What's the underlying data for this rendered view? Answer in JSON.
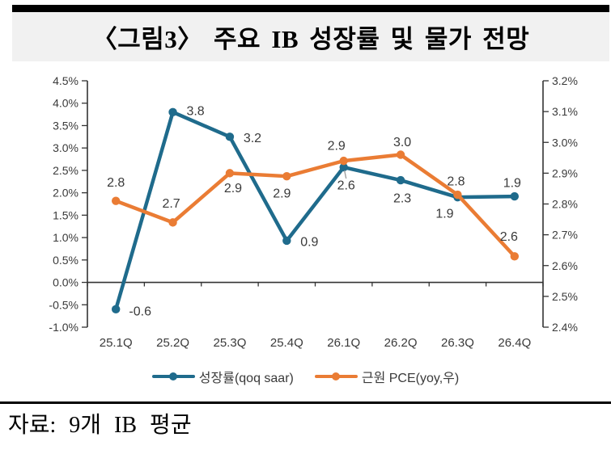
{
  "title": "〈그림3〉 주요 IB 성장률 및 물가 전망",
  "source": "자료: 9개 IB 평균",
  "colors": {
    "growth_line": "#1f6b8c",
    "pce_line": "#ea7c34",
    "axis_line": "#333333",
    "label_text": "#3a3a3a",
    "title_background": "#f1f1f1",
    "rule_black": "#000000"
  },
  "legend": [
    {
      "label": "성장률(qoq saar)"
    },
    {
      "label": "근원 PCE(yoy,우)"
    }
  ],
  "chart_data": {
    "type": "line",
    "title": "〈그림3〉 주요 IB 성장률 및 물가 전망",
    "categories": [
      "25.1Q",
      "25.2Q",
      "25.3Q",
      "25.4Q",
      "26.1Q",
      "26.2Q",
      "26.3Q",
      "26.4Q"
    ],
    "series": [
      {
        "name": "성장률(qoq saar)",
        "axis": "left",
        "color": "#1f6b8c",
        "values": [
          -0.6,
          3.8,
          3.2,
          0.9,
          2.6,
          2.3,
          1.9,
          1.9
        ],
        "plot_values": [
          -0.6,
          3.8,
          3.25,
          0.93,
          2.57,
          2.28,
          1.9,
          1.92
        ],
        "labels": [
          "-0.6",
          "3.8",
          "3.2",
          "0.9",
          "2.6",
          "2.3",
          "1.9",
          "1.9"
        ],
        "label_offsets": [
          [
            30,
            2
          ],
          [
            28,
            -2
          ],
          [
            28,
            1
          ],
          [
            28,
            1
          ],
          [
            3,
            22
          ],
          [
            2,
            22
          ],
          [
            -16,
            20
          ],
          [
            -3,
            -17
          ]
        ],
        "leader_lines": [
          4
        ]
      },
      {
        "name": "근원 PCE(yoy,우)",
        "axis": "right",
        "color": "#ea7c34",
        "values": [
          2.8,
          2.7,
          2.9,
          2.9,
          2.9,
          3.0,
          2.8,
          2.6
        ],
        "plot_values": [
          2.81,
          2.74,
          2.9,
          2.89,
          2.94,
          2.96,
          2.83,
          2.63
        ],
        "labels": [
          "2.8",
          "2.7",
          "2.9",
          "2.9",
          "2.9",
          "3.0",
          "2.8",
          "2.6"
        ],
        "label_offsets": [
          [
            0,
            -23
          ],
          [
            -2,
            -24
          ],
          [
            4,
            18
          ],
          [
            -6,
            21
          ],
          [
            -9,
            -19
          ],
          [
            2,
            -16
          ],
          [
            -2,
            -17
          ],
          [
            -7,
            -25
          ]
        ],
        "leader_lines": []
      }
    ],
    "left_axis": {
      "min": -1.0,
      "max": 4.5,
      "step": 0.5,
      "tick_format": "percent_1dp"
    },
    "right_axis": {
      "min": 2.4,
      "max": 3.2,
      "step": 0.1,
      "tick_format": "percent_1dp"
    },
    "grid": false,
    "legend_position": "bottom"
  }
}
